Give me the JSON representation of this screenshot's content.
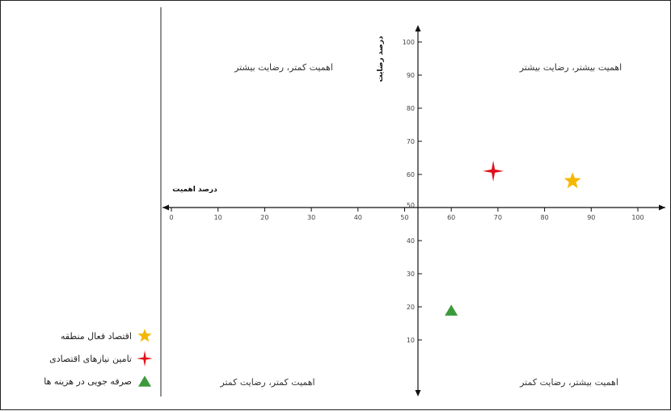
{
  "chart_data": {
    "type": "scatter",
    "xlabel": "درصد اهمیت",
    "ylabel": "درصد رضایت",
    "xlim": [
      0,
      100
    ],
    "ylim": [
      0,
      100
    ],
    "x_ticks": [
      "0",
      "10",
      "20",
      "30",
      "40",
      "50",
      "60",
      "70",
      "80",
      "90",
      "100"
    ],
    "y_ticks": [
      "10",
      "20",
      "30",
      "40",
      "50",
      "60",
      "70",
      "80",
      "90",
      "100"
    ],
    "quadrants": {
      "top_left": "اهمیت کمتر، رضایت بیشتر",
      "top_right": "اهمیت بیشتر، رضایت بیشتر",
      "bottom_left": "اهمیت کمتر، رضایت کمتر",
      "bottom_right": "اهمیت بیشتر، رضایت کمتر"
    },
    "series": [
      {
        "name": "اقتصاد فعال منطقه",
        "marker": "star5",
        "color": "#f5b800",
        "x": 86,
        "y": 58
      },
      {
        "name": "تامین نیازهای اقتصادی",
        "marker": "star4",
        "color": "#e0101a",
        "x": 69,
        "y": 61
      },
      {
        "name": "صرفه جویی در هزینه ها",
        "marker": "triangle",
        "color": "#3c9a3c",
        "x": 60,
        "y": 19
      }
    ]
  }
}
